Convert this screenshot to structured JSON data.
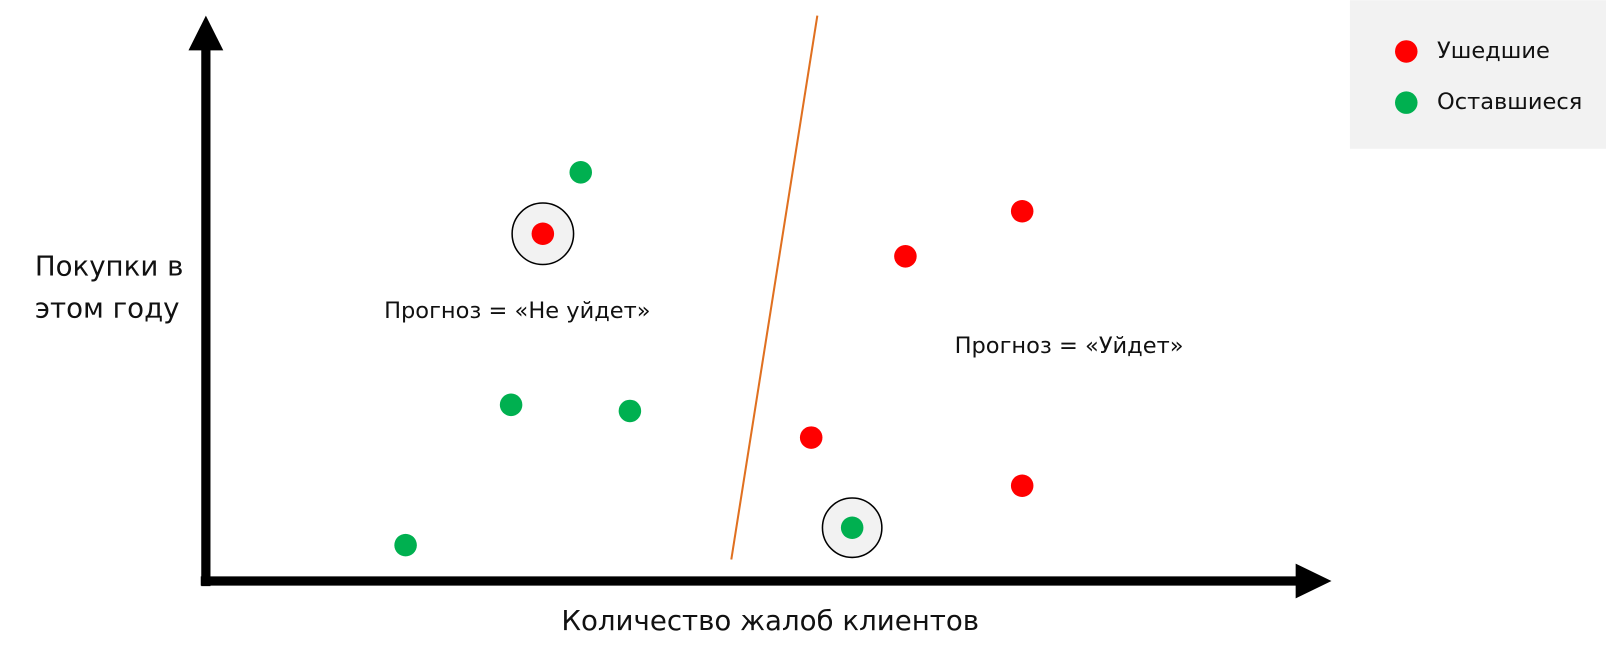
{
  "axes": {
    "y_label": [
      "Покупки в",
      "этом году"
    ],
    "x_label": "Количество жалоб клиентов"
  },
  "annotations": [
    "Прогноз = «Не уйдет»",
    "Прогноз = «Уйдет»"
  ],
  "legend": [
    "Ушедшие",
    "Оставшиеся"
  ]
}
